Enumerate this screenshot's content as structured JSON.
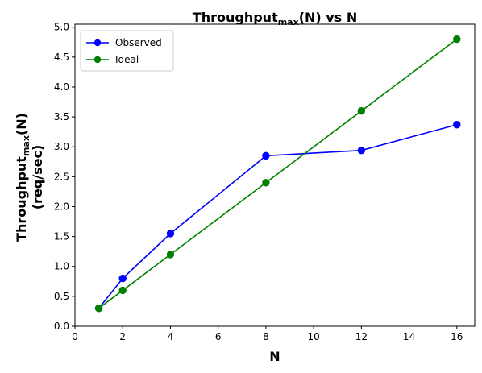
{
  "chart_data": {
    "type": "line",
    "title": {
      "main": "Throughput",
      "sub": "max",
      "tail": "(N) vs N"
    },
    "xlabel": "N",
    "ylabel": {
      "main": "Throughput",
      "sub": "max",
      "tail": "(N)",
      "line2": "(req/sec)"
    },
    "xlim": [
      0,
      16.75
    ],
    "ylim": [
      0,
      5.05
    ],
    "xticks": [
      0,
      2,
      4,
      6,
      8,
      10,
      12,
      14,
      16
    ],
    "yticks": [
      0.0,
      0.5,
      1.0,
      1.5,
      2.0,
      2.5,
      3.0,
      3.5,
      4.0,
      4.5,
      5.0
    ],
    "grid": false,
    "legend": "top-left",
    "series": [
      {
        "name": "Observed",
        "color": "#0000ff",
        "marker": "circle",
        "x": [
          1,
          2,
          4,
          8,
          12,
          16
        ],
        "y": [
          0.3,
          0.8,
          1.55,
          2.85,
          2.94,
          3.37
        ]
      },
      {
        "name": "Ideal",
        "color": "#008000",
        "marker": "circle",
        "x": [
          1,
          2,
          4,
          8,
          12,
          16
        ],
        "y": [
          0.3,
          0.6,
          1.2,
          2.4,
          3.6,
          4.8
        ]
      }
    ]
  }
}
